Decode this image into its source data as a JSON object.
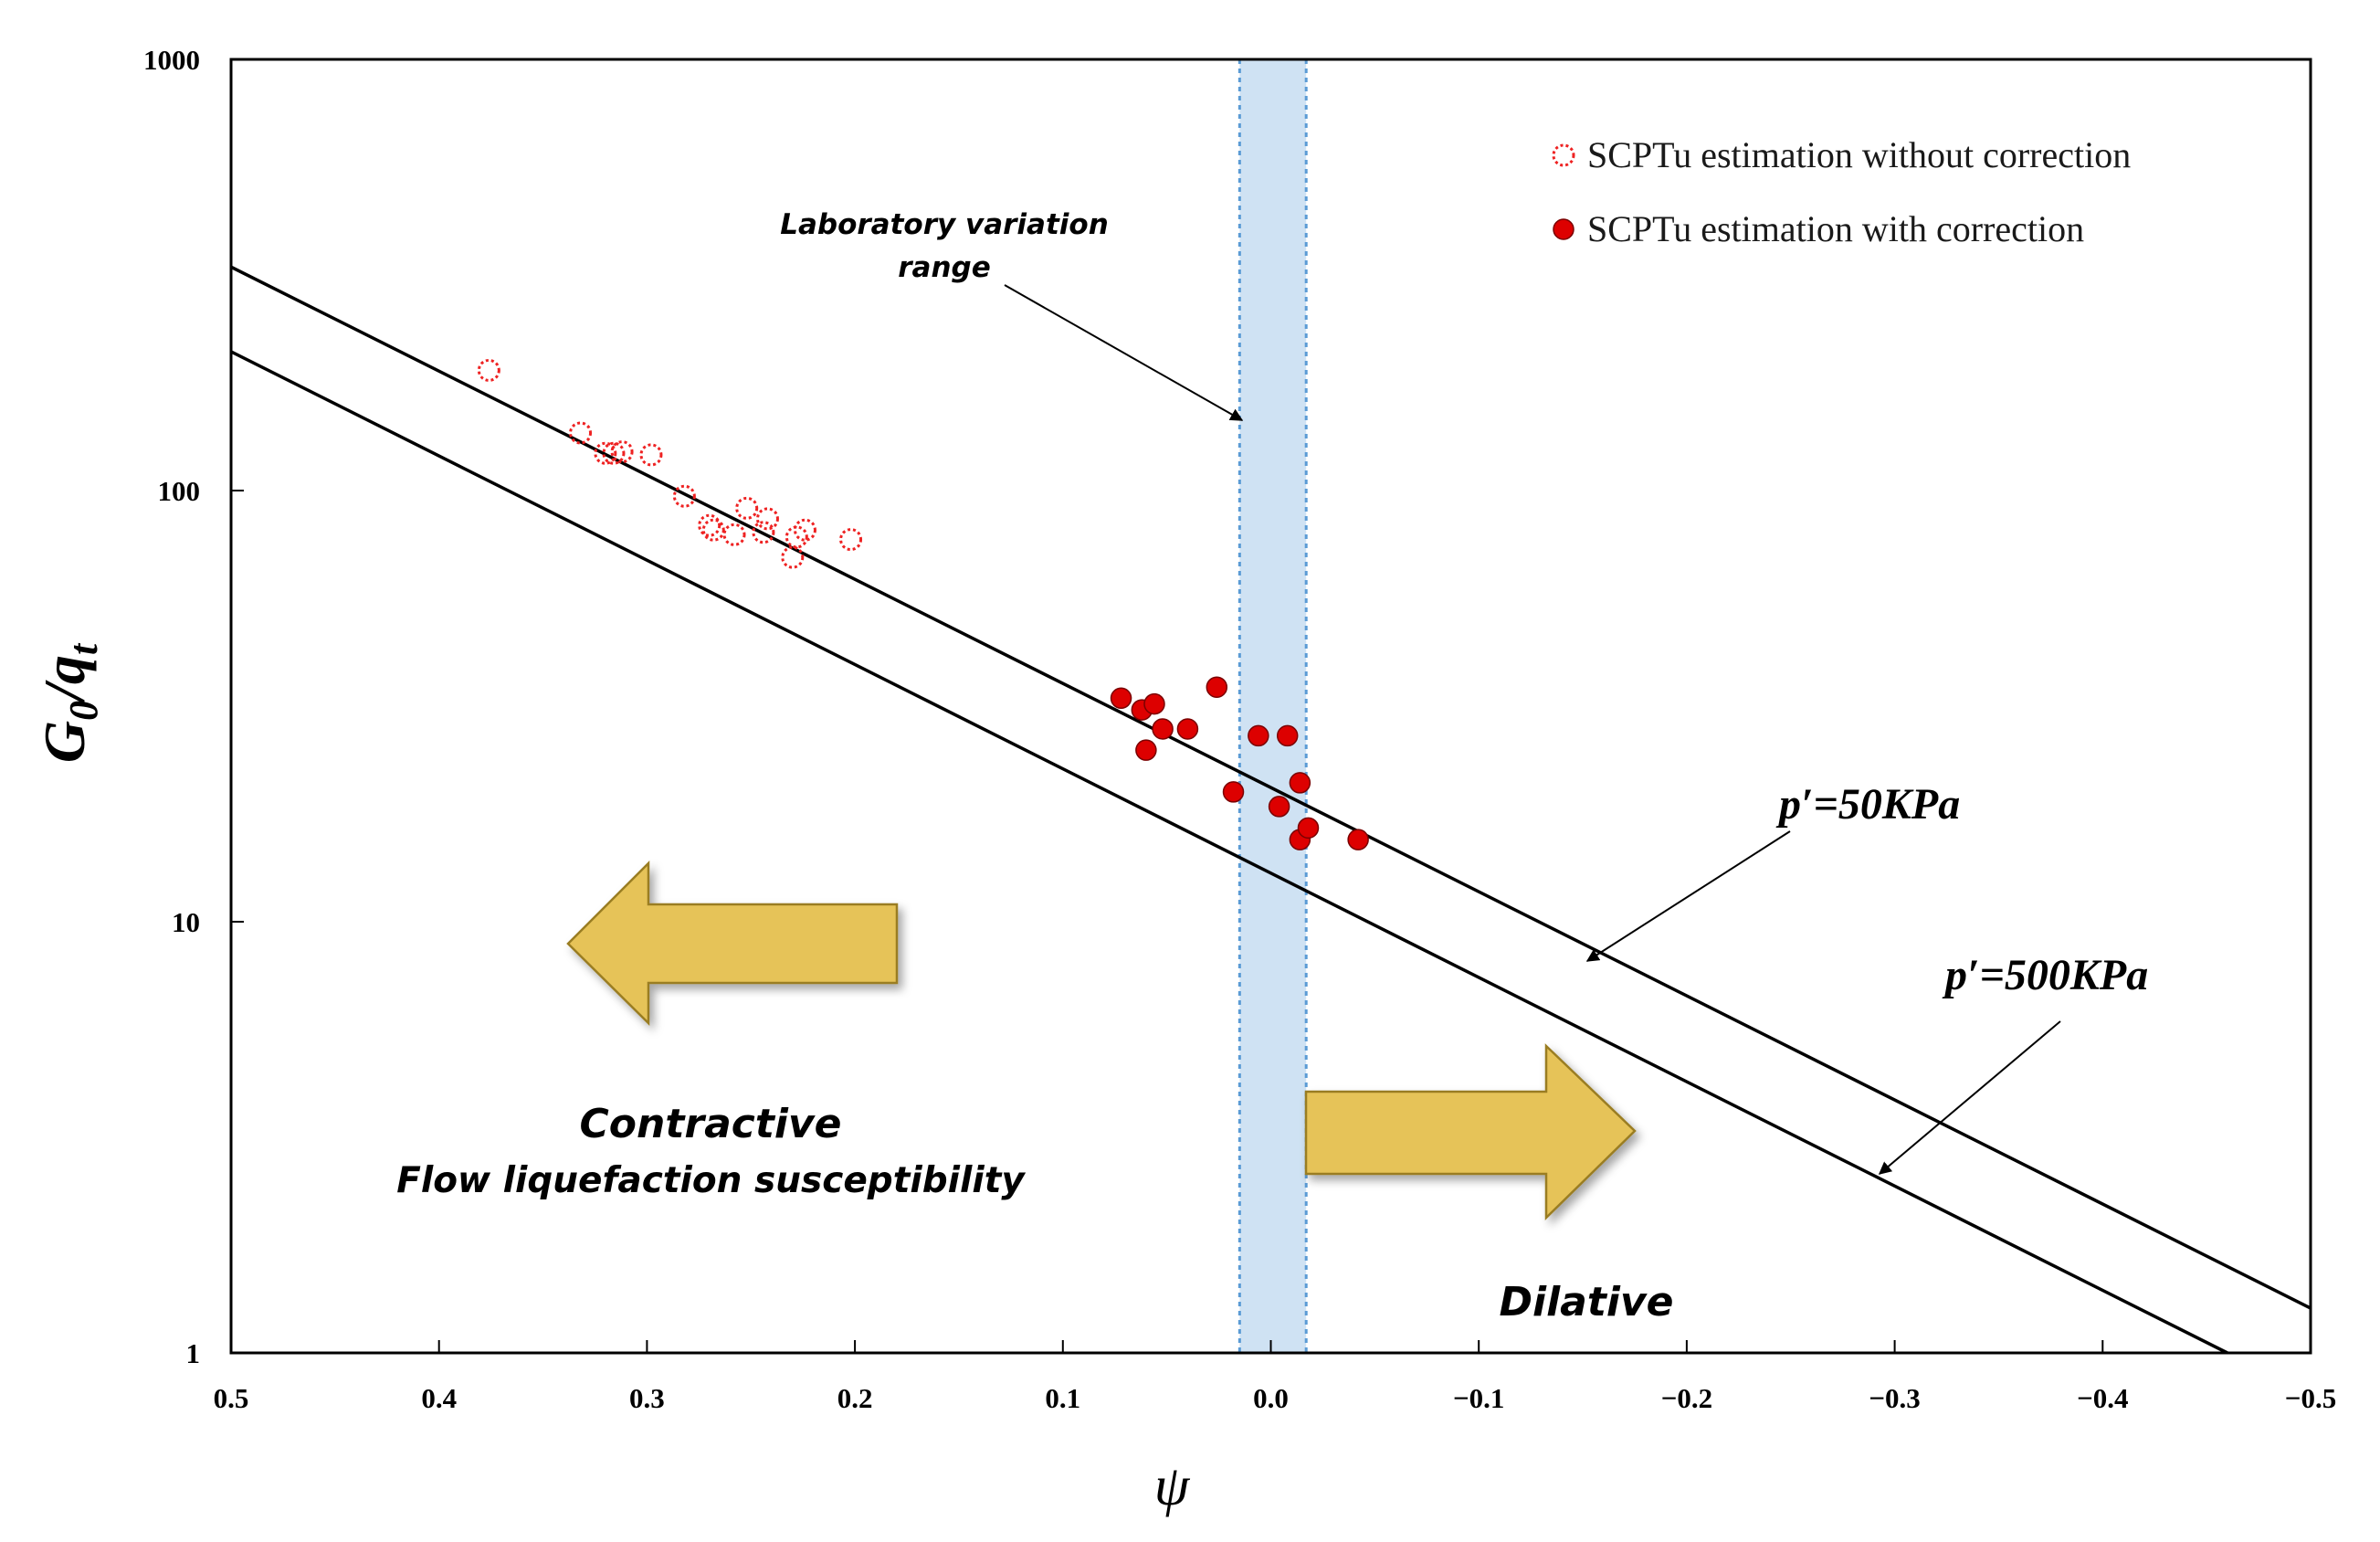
{
  "chart_data": {
    "type": "scatter",
    "xlabel": "ψ",
    "ylabel": {
      "main": "G",
      "sub1": "0",
      "mid": "/q",
      "sub2": "t"
    },
    "xlim": [
      0.5,
      -0.5
    ],
    "ylim": [
      1,
      1000
    ],
    "yscale": "log",
    "x_ticks": [
      "0.5",
      "0.4",
      "0.3",
      "0.2",
      "0.1",
      "0.0",
      "−0.1",
      "−0.2",
      "−0.3",
      "−0.4",
      "−0.5"
    ],
    "x_tick_values": [
      0.5,
      0.4,
      0.3,
      0.2,
      0.1,
      0.0,
      -0.1,
      -0.2,
      -0.3,
      -0.4,
      -0.5
    ],
    "y_ticks": [
      "1",
      "10",
      "100",
      "1000"
    ],
    "y_tick_values": [
      1,
      10,
      100,
      1000
    ],
    "lab_range": {
      "x": [
        0.015,
        -0.017
      ],
      "label_line1": "Laboratory variation",
      "label_line2": "range"
    },
    "series": [
      {
        "name": "SCPTu estimation without correction",
        "marker": "open-circle",
        "color": "#ee2222",
        "points": [
          [
            0.376,
            190
          ],
          [
            0.332,
            136
          ],
          [
            0.32,
            122
          ],
          [
            0.316,
            122
          ],
          [
            0.312,
            123
          ],
          [
            0.298,
            121
          ],
          [
            0.282,
            97
          ],
          [
            0.27,
            83
          ],
          [
            0.268,
            81
          ],
          [
            0.258,
            79
          ],
          [
            0.252,
            91
          ],
          [
            0.244,
            80
          ],
          [
            0.242,
            86
          ],
          [
            0.23,
            70
          ],
          [
            0.228,
            78
          ],
          [
            0.224,
            81
          ],
          [
            0.202,
            77
          ]
        ]
      },
      {
        "name": "SCPTu estimation with correction",
        "marker": "filled-circle",
        "color": "#dd0000",
        "points": [
          [
            0.072,
            33
          ],
          [
            0.062,
            31
          ],
          [
            0.056,
            32
          ],
          [
            0.052,
            28
          ],
          [
            0.06,
            25
          ],
          [
            0.04,
            28
          ],
          [
            0.026,
            35
          ],
          [
            0.018,
            20
          ],
          [
            0.006,
            27
          ],
          [
            -0.008,
            27
          ],
          [
            -0.004,
            18.5
          ],
          [
            -0.014,
            21
          ],
          [
            -0.014,
            15.5
          ],
          [
            -0.018,
            16.5
          ],
          [
            -0.042,
            15.5
          ]
        ]
      }
    ],
    "lines": [
      {
        "name": "p'=50KPa",
        "label": "p′=50KPa",
        "points": [
          [
            0.5,
            330
          ],
          [
            -0.5,
            1.27
          ]
        ]
      },
      {
        "name": "p'=500KPa",
        "label": "p′=500KPa",
        "points": [
          [
            0.5,
            210
          ],
          [
            -0.46,
            1
          ]
        ]
      }
    ],
    "annotations": {
      "contractive_title": "Contractive",
      "contractive_sub": "Flow liquefaction susceptibility",
      "dilative": "Dilative"
    },
    "colors": {
      "lab_band": "#cfe2f3",
      "lab_border": "#5b9bd5",
      "arrow_fill": "#e6c358",
      "arrow_stroke": "#9a7d22"
    }
  }
}
